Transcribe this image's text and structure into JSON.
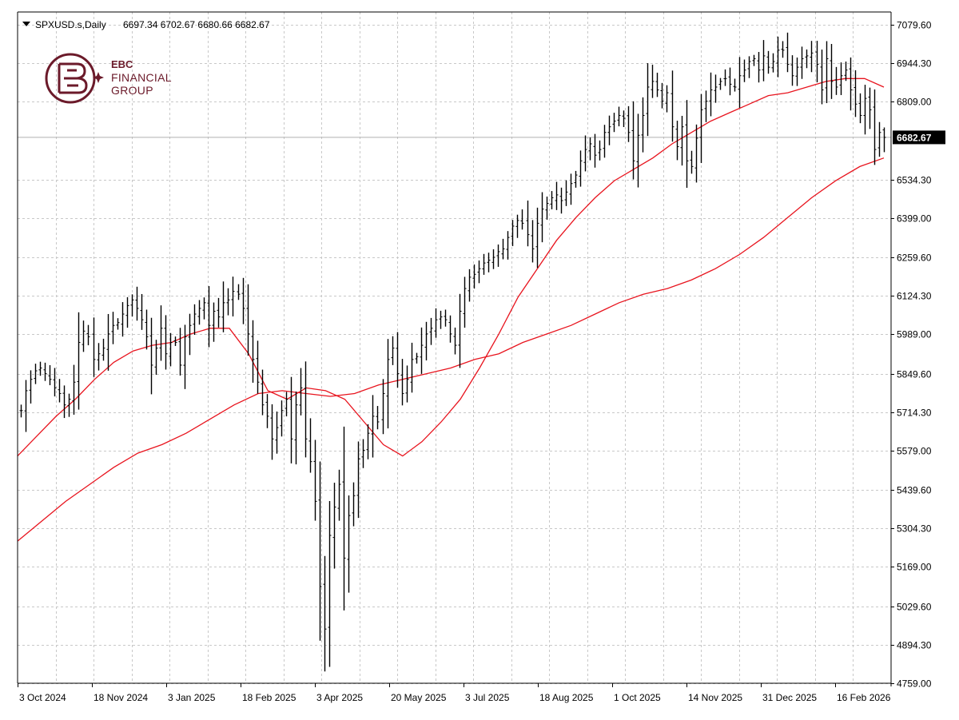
{
  "header": {
    "symbol": "SPXUSD.s,Daily",
    "ohlc": "6697.34 6702.67 6680.66 6682.67"
  },
  "logo": {
    "line1": "EBC",
    "line2": "FINANCIAL",
    "line3": "GROUP"
  },
  "colors": {
    "background": "#ffffff",
    "grid": "#c8c8c8",
    "bars": "#000000",
    "ma_fast": "#e8141e",
    "ma_slow": "#e8141e",
    "logo": "#6b1a2a",
    "current_price_tag": "#000000"
  },
  "chart_data": {
    "type": "ohlc",
    "title": "",
    "symbol": "SPXUSD.s",
    "timeframe": "Daily",
    "last_bar": {
      "open": 6697.34,
      "high": 6702.67,
      "low": 6680.66,
      "close": 6682.67
    },
    "current_price_label": "6682.67",
    "ylim": [
      4759.0,
      7124.6
    ],
    "y_ticks": [
      "7079.60",
      "6944.30",
      "6809.00",
      "6534.30",
      "6399.00",
      "6259.60",
      "6124.30",
      "5989.00",
      "5849.60",
      "5714.30",
      "5579.00",
      "5439.60",
      "5304.30",
      "5169.00",
      "5029.60",
      "4894.30",
      "4759.00"
    ],
    "x_tick_labels": [
      "3 Oct 2024",
      "18 Nov 2024",
      "3 Jan 2025",
      "18 Feb 2025",
      "3 Apr 2025",
      "20 May 2025",
      "3 Jul 2025",
      "18 Aug 2025",
      "1 Oct 2025",
      "14 Nov 2025",
      "31 Dec 2025",
      "16 Feb 2026"
    ],
    "grid": true,
    "close_path": [
      5720,
      5790,
      5830,
      5860,
      5870,
      5850,
      5830,
      5800,
      5780,
      5740,
      5760,
      5820,
      5960,
      6000,
      5980,
      5900,
      5920,
      5940,
      5990,
      6020,
      6030,
      6060,
      6090,
      6110,
      6080,
      6040,
      5980,
      5880,
      5940,
      6010,
      5920,
      5960,
      5960,
      5880,
      5980,
      6020,
      6060,
      6080,
      6100,
      6020,
      6070,
      6050,
      6100,
      6110,
      6140,
      6130,
      6080,
      5990,
      5900,
      5820,
      5740,
      5700,
      5620,
      5660,
      5720,
      5760,
      5620,
      5740,
      5800,
      5620,
      5540,
      5400,
      5100,
      4950,
      5280,
      5380,
      5460,
      5200,
      5350,
      5420,
      5550,
      5580,
      5640,
      5700,
      5680,
      5780,
      5900,
      5940,
      5850,
      5780,
      5830,
      5900,
      5910,
      5950,
      5990,
      6010,
      6040,
      6050,
      6040,
      5990,
      5950,
      6070,
      6150,
      6190,
      6200,
      6220,
      6240,
      6250,
      6260,
      6280,
      6290,
      6330,
      6370,
      6390,
      6380,
      6340,
      6290,
      6380,
      6430,
      6450,
      6470,
      6480,
      6460,
      6490,
      6520,
      6550,
      6600,
      6640,
      6660,
      6620,
      6640,
      6700,
      6720,
      6740,
      6760,
      6750,
      6700,
      6600,
      6690,
      6760,
      6860,
      6880,
      6850,
      6810,
      6840,
      6720,
      6650,
      6720,
      6600,
      6580,
      6680,
      6780,
      6810,
      6850,
      6860,
      6880,
      6890,
      6870,
      6860,
      6900,
      6920,
      6950,
      6960,
      6920,
      6970,
      6930,
      6950,
      6990,
      6990,
      6940,
      6900,
      6930,
      6960,
      6970,
      6980,
      6940,
      6850,
      6960,
      6880,
      6860,
      6900,
      6920,
      6850,
      6800,
      6760,
      6820,
      6780,
      6640,
      6700,
      6682.67
    ],
    "series": [
      {
        "name": "",
        "color": "#e8141e",
        "values": [
          5560,
          5630,
          5700,
          5760,
          5830,
          5890,
          5930,
          5950,
          5960,
          5990,
          6010,
          6010,
          5920,
          5790,
          5760,
          5800,
          5790,
          5760,
          5680,
          5600,
          5560,
          5610,
          5680,
          5760,
          5870,
          5990,
          6120,
          6220,
          6320,
          6400,
          6470,
          6530,
          6570,
          6610,
          6660,
          6700,
          6740,
          6770,
          6800,
          6830,
          6840,
          6860,
          6880,
          6890,
          6890,
          6860
        ]
      },
      {
        "name": "",
        "color": "#e8141e",
        "values": [
          5260,
          5330,
          5400,
          5460,
          5520,
          5570,
          5600,
          5640,
          5690,
          5740,
          5780,
          5790,
          5780,
          5770,
          5780,
          5810,
          5830,
          5850,
          5870,
          5900,
          5920,
          5960,
          5990,
          6020,
          6060,
          6100,
          6130,
          6150,
          6180,
          6220,
          6270,
          6330,
          6400,
          6470,
          6530,
          6580,
          6610
        ]
      }
    ]
  }
}
